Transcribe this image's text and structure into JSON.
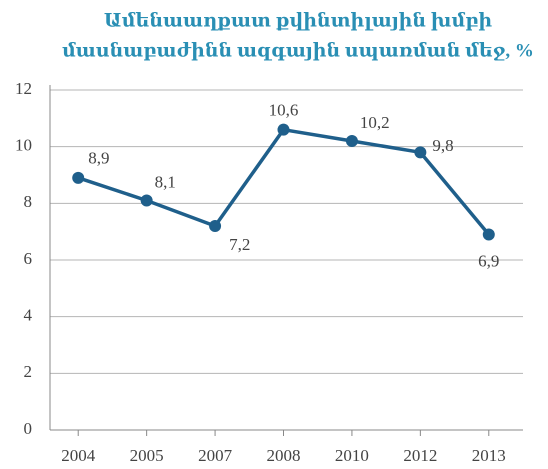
{
  "chart_data": {
    "type": "line",
    "title": [
      "Ամենաաղքատ քվինտիլային խմբի",
      "մասնաբաժինն ազգային սպառման մեջ, %"
    ],
    "categories": [
      "2004",
      "2005",
      "2007",
      "2008",
      "2010",
      "2012",
      "2013"
    ],
    "values": [
      8.9,
      8.1,
      7.2,
      10.6,
      10.2,
      9.8,
      6.9
    ],
    "value_labels": [
      "8,9",
      "8,1",
      "7,2",
      "10,6",
      "10,2",
      "9,8",
      "6,9"
    ],
    "color": "#1f5f8b",
    "ylim": [
      0,
      12
    ],
    "yticks": [
      0,
      2,
      4,
      6,
      8,
      10,
      12
    ],
    "grid": true
  }
}
